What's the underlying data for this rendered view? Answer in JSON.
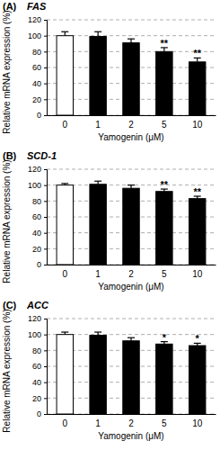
{
  "chart_data": [
    {
      "type": "bar",
      "panel": "(A)",
      "title": "FAS",
      "categories": [
        "0",
        "1",
        "2",
        "5",
        "10"
      ],
      "values": [
        100,
        99,
        91,
        80,
        67
      ],
      "errors": [
        5,
        6,
        5,
        5,
        5
      ],
      "significance": [
        null,
        null,
        null,
        "**",
        "**"
      ],
      "colors": [
        "#ffffff",
        "#000000",
        "#000000",
        "#000000",
        "#000000"
      ],
      "x_label": "Yamogenin (μM)",
      "y_label": "Relative mRNA expression (%)",
      "ylim": [
        0,
        120
      ],
      "yticks": [
        0,
        20,
        40,
        60,
        80,
        100,
        120
      ],
      "grid": true
    },
    {
      "type": "bar",
      "panel": "(B)",
      "title": "SCD-1",
      "categories": [
        "0",
        "1",
        "2",
        "5",
        "10"
      ],
      "values": [
        100,
        101,
        96,
        92,
        83
      ],
      "errors": [
        2,
        4,
        4,
        3,
        3
      ],
      "significance": [
        null,
        null,
        null,
        "**",
        "**"
      ],
      "colors": [
        "#ffffff",
        "#000000",
        "#000000",
        "#000000",
        "#000000"
      ],
      "x_label": "Yamogenin (μM)",
      "y_label": "Relative mRNA expression (%)",
      "ylim": [
        0,
        120
      ],
      "yticks": [
        0,
        20,
        40,
        60,
        80,
        100,
        120
      ],
      "grid": true
    },
    {
      "type": "bar",
      "panel": "(C)",
      "title": "ACC",
      "categories": [
        "0",
        "1",
        "2",
        "5",
        "10"
      ],
      "values": [
        100,
        99,
        92,
        88,
        86
      ],
      "errors": [
        3,
        4,
        4,
        3,
        3
      ],
      "significance": [
        null,
        null,
        null,
        "*",
        "*"
      ],
      "colors": [
        "#ffffff",
        "#000000",
        "#000000",
        "#000000",
        "#000000"
      ],
      "x_label": "Yamogenin (μM)",
      "y_label": "Relative mRNA expression (%)",
      "ylim": [
        0,
        120
      ],
      "yticks": [
        0,
        20,
        40,
        60,
        80,
        100,
        120
      ],
      "grid": true
    }
  ]
}
